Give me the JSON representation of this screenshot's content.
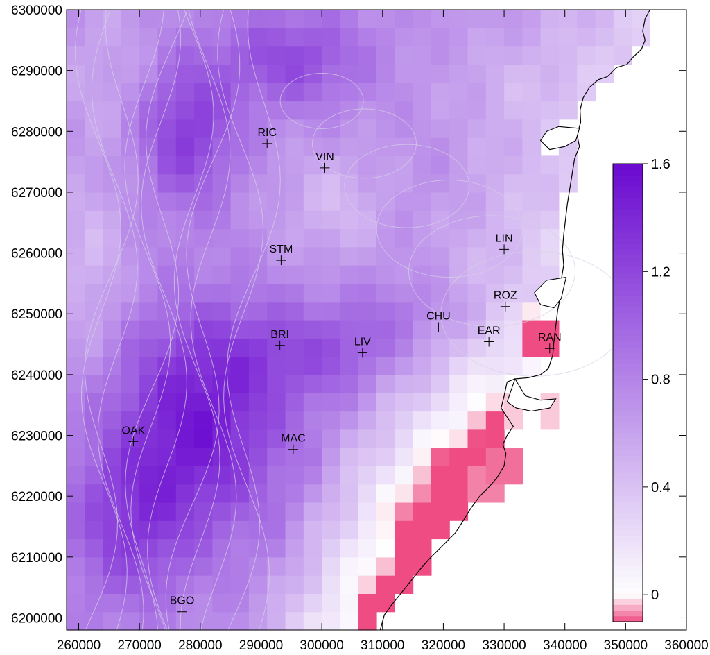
{
  "chart_data": {
    "type": "heatmap",
    "x_range": [
      258000,
      360000
    ],
    "y_range": [
      6198000,
      6300000
    ],
    "x_ticks": [
      {
        "value": 260000,
        "label": "260000"
      },
      {
        "value": 270000,
        "label": "270000"
      },
      {
        "value": 280000,
        "label": "280000"
      },
      {
        "value": 290000,
        "label": "290000"
      },
      {
        "value": 300000,
        "label": "300000"
      },
      {
        "value": 310000,
        "label": "310000"
      },
      {
        "value": 320000,
        "label": "320000"
      },
      {
        "value": 330000,
        "label": "330000"
      },
      {
        "value": 340000,
        "label": "340000"
      },
      {
        "value": 350000,
        "label": "350000"
      },
      {
        "value": 360000,
        "label": "360000"
      }
    ],
    "y_ticks": [
      {
        "value": 6200000,
        "label": "6200000"
      },
      {
        "value": 6210000,
        "label": "6210000"
      },
      {
        "value": 6220000,
        "label": "6220000"
      },
      {
        "value": 6230000,
        "label": "6230000"
      },
      {
        "value": 6240000,
        "label": "6240000"
      },
      {
        "value": 6250000,
        "label": "6250000"
      },
      {
        "value": 6260000,
        "label": "6260000"
      },
      {
        "value": 6270000,
        "label": "6270000"
      },
      {
        "value": 6280000,
        "label": "6280000"
      },
      {
        "value": 6290000,
        "label": "6290000"
      },
      {
        "value": 6300000,
        "label": "6300000"
      }
    ],
    "stations": [
      {
        "name": "RIC",
        "x": 291000,
        "y": 6278000
      },
      {
        "name": "VIN",
        "x": 300500,
        "y": 6274000
      },
      {
        "name": "STM",
        "x": 293300,
        "y": 6258800
      },
      {
        "name": "LIN",
        "x": 330000,
        "y": 6260600
      },
      {
        "name": "ROZ",
        "x": 330200,
        "y": 6251200
      },
      {
        "name": "CHU",
        "x": 319200,
        "y": 6247800
      },
      {
        "name": "EAR",
        "x": 327500,
        "y": 6245400
      },
      {
        "name": "RAN",
        "x": 337500,
        "y": 6244300
      },
      {
        "name": "BRI",
        "x": 293100,
        "y": 6244800
      },
      {
        "name": "LIV",
        "x": 306700,
        "y": 6243600
      },
      {
        "name": "OAK",
        "x": 269000,
        "y": 6229000
      },
      {
        "name": "MAC",
        "x": 295300,
        "y": 6227700
      },
      {
        "name": "BGO",
        "x": 277000,
        "y": 6201000
      }
    ],
    "colorbar": {
      "min": -0.1,
      "max": 1.6,
      "ticks": [
        {
          "value": 1.6,
          "label": "1.6"
        },
        {
          "value": 1.2,
          "label": "1.2"
        },
        {
          "value": 0.8,
          "label": "0.8"
        },
        {
          "value": 0.4,
          "label": "0.4"
        },
        {
          "value": 0.0,
          "label": "0"
        }
      ],
      "color_low_negative": "#ee4c82",
      "color_zero": "#ffffff",
      "color_high": "#6a0ad0"
    },
    "grid_cell_size_m": 3000,
    "coastline_color": "#000000",
    "contour_color": "#d6d0e6",
    "note_field": "concentration field"
  }
}
